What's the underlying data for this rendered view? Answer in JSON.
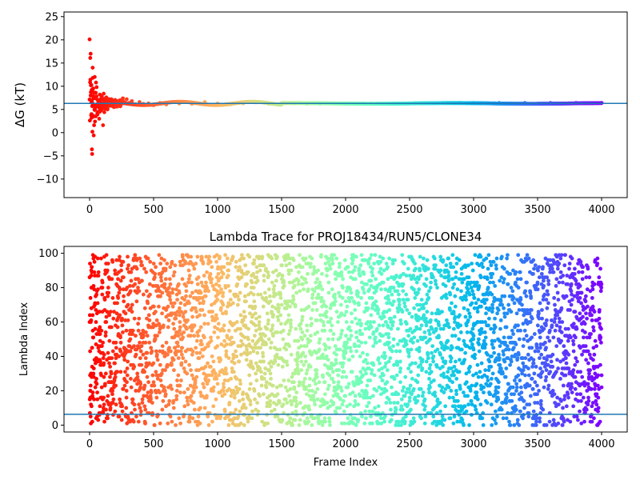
{
  "chart_data": [
    {
      "type": "scatter",
      "title": "",
      "xlabel": "",
      "ylabel": "ΔG (kT)",
      "xlim": [
        -200,
        4200
      ],
      "ylim": [
        -14,
        26
      ],
      "xticks": [
        0,
        500,
        1000,
        1500,
        2000,
        2500,
        3000,
        3500,
        4000
      ],
      "yticks": [
        -10,
        -5,
        0,
        5,
        10,
        15,
        20,
        25
      ],
      "hline": 6.3,
      "hline_color": "#1f77b4",
      "colormap": "rainbow (red at frame 0 to violet at frame 4000)",
      "converged_value": 6.3,
      "points": [
        [
          0,
          20.1
        ],
        [
          5,
          16.1
        ],
        [
          8,
          17.0
        ],
        [
          10,
          10.2
        ],
        [
          12,
          8.0
        ],
        [
          14,
          6.5
        ],
        [
          15,
          4.0
        ],
        [
          16,
          3.2
        ],
        [
          18,
          -3.6
        ],
        [
          20,
          -4.6
        ],
        [
          22,
          0.2
        ],
        [
          24,
          14.0
        ],
        [
          25,
          11.8
        ],
        [
          28,
          9.5
        ],
        [
          30,
          7.4
        ],
        [
          32,
          -0.6
        ],
        [
          35,
          1.6
        ],
        [
          38,
          5.0
        ],
        [
          40,
          12.0
        ],
        [
          42,
          2.4
        ],
        [
          45,
          6.0
        ],
        [
          48,
          8.6
        ],
        [
          50,
          10.8
        ],
        [
          55,
          9.8
        ],
        [
          60,
          4.2
        ],
        [
          65,
          7.0
        ],
        [
          70,
          5.5
        ],
        [
          75,
          3.0
        ],
        [
          80,
          8.2
        ],
        [
          85,
          6.1
        ],
        [
          90,
          4.8
        ],
        [
          95,
          7.8
        ],
        [
          100,
          5.2
        ],
        [
          105,
          1.6
        ],
        [
          110,
          8.4
        ],
        [
          115,
          4.4
        ],
        [
          120,
          6.9
        ],
        [
          125,
          5.6
        ],
        [
          130,
          7.6
        ],
        [
          140,
          5.0
        ],
        [
          150,
          6.8
        ],
        [
          160,
          5.8
        ],
        [
          170,
          7.2
        ],
        [
          180,
          6.0
        ],
        [
          190,
          5.5
        ],
        [
          200,
          7.0
        ],
        [
          215,
          6.2
        ],
        [
          230,
          5.9
        ],
        [
          245,
          6.9
        ],
        [
          260,
          7.4
        ],
        [
          275,
          6.5
        ],
        [
          290,
          7.2
        ],
        [
          310,
          6.4
        ],
        [
          330,
          6.8
        ],
        [
          360,
          6.1
        ],
        [
          390,
          6.6
        ],
        [
          420,
          6.2
        ],
        [
          460,
          6.3
        ],
        [
          500,
          5.9
        ],
        [
          550,
          6.4
        ],
        [
          600,
          6.1
        ],
        [
          700,
          6.3
        ],
        [
          800,
          6.2
        ],
        [
          900,
          6.6
        ],
        [
          1000,
          6.3
        ],
        [
          1100,
          6.1
        ],
        [
          1200,
          6.3
        ],
        [
          1300,
          6.5
        ],
        [
          1400,
          6.2
        ],
        [
          1500,
          6.1
        ],
        [
          1600,
          6.3
        ],
        [
          1700,
          6.2
        ],
        [
          1800,
          6.2
        ],
        [
          1900,
          6.3
        ],
        [
          2000,
          6.2
        ],
        [
          2200,
          6.3
        ],
        [
          2400,
          6.3
        ],
        [
          2600,
          6.3
        ],
        [
          2800,
          6.4
        ],
        [
          3000,
          6.4
        ],
        [
          3200,
          6.4
        ],
        [
          3400,
          6.4
        ],
        [
          3600,
          6.4
        ],
        [
          3800,
          6.4
        ],
        [
          4000,
          6.4
        ]
      ]
    },
    {
      "type": "scatter",
      "title": "Lambda Trace for PROJ18434/RUN5/CLONE34",
      "xlabel": "Frame Index",
      "ylabel": "Lambda Index",
      "xlim": [
        -200,
        4200
      ],
      "ylim": [
        -4,
        104
      ],
      "xticks": [
        0,
        500,
        1000,
        1500,
        2000,
        2500,
        3000,
        3500,
        4000
      ],
      "yticks": [
        0,
        20,
        40,
        60,
        80,
        100
      ],
      "hline": 6.3,
      "hline_color": "#1f77b4",
      "colormap": "rainbow (red at frame 0 to violet at frame 4000)",
      "n_frames": 4000,
      "lambda_range": [
        0,
        99
      ],
      "sample_points": [
        [
          0,
          86
        ],
        [
          2,
          64
        ],
        [
          4,
          43
        ],
        [
          6,
          20
        ],
        [
          8,
          5
        ],
        [
          10,
          12
        ],
        [
          12,
          61
        ],
        [
          14,
          80
        ],
        [
          16,
          92
        ],
        [
          20,
          34
        ],
        [
          25,
          55
        ],
        [
          30,
          30
        ],
        [
          40,
          98
        ],
        [
          50,
          47
        ],
        [
          60,
          19
        ],
        [
          70,
          89
        ],
        [
          80,
          57
        ],
        [
          90,
          35
        ],
        [
          100,
          66
        ],
        [
          150,
          12
        ],
        [
          200,
          88
        ],
        [
          300,
          70
        ],
        [
          500,
          25
        ],
        [
          1000,
          76
        ],
        [
          1500,
          39
        ],
        [
          2000,
          91
        ],
        [
          2500,
          14
        ],
        [
          3000,
          52
        ],
        [
          3500,
          83
        ],
        [
          4000,
          22
        ]
      ]
    }
  ]
}
